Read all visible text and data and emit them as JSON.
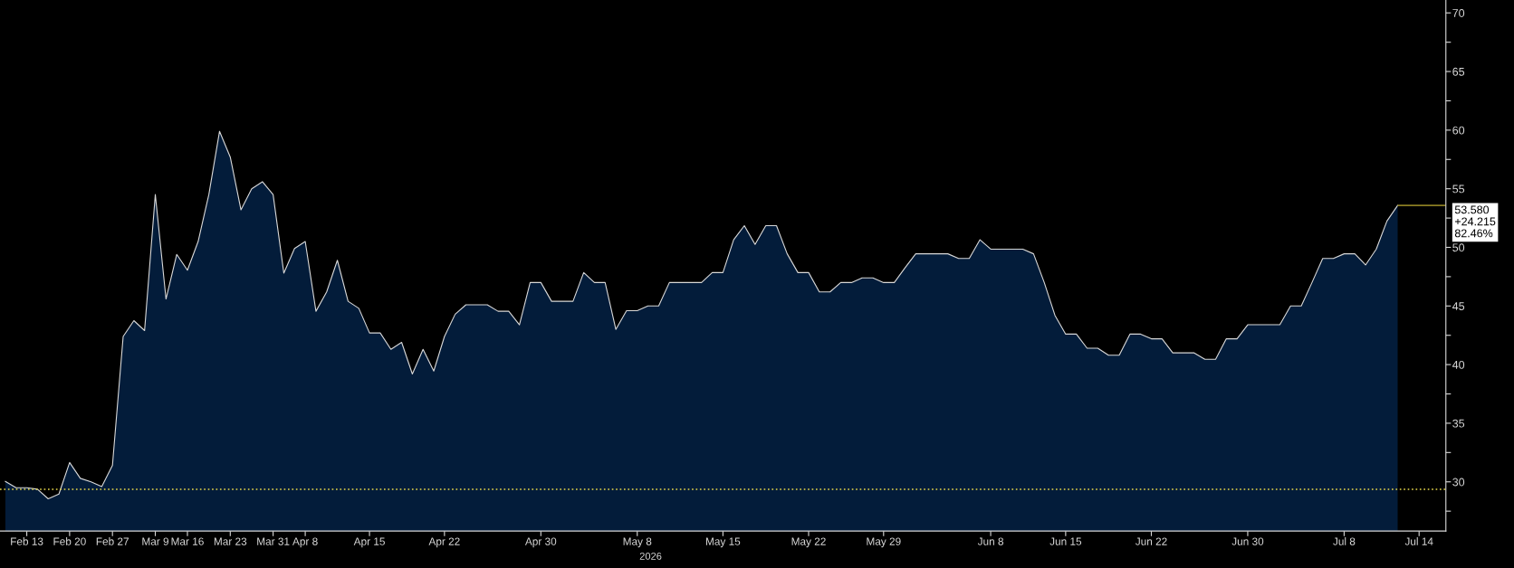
{
  "chart_data": {
    "type": "area",
    "xlabel": "2026",
    "categories": [
      null,
      null,
      "Feb 13",
      null,
      null,
      null,
      "Feb 20",
      null,
      null,
      null,
      "Feb 27",
      null,
      null,
      null,
      "Mar 9",
      null,
      null,
      "Mar 16",
      null,
      null,
      null,
      "Mar 23",
      null,
      null,
      null,
      "Mar 31",
      null,
      null,
      "Apr 8",
      null,
      null,
      null,
      null,
      null,
      "Apr 15",
      null,
      null,
      null,
      null,
      null,
      null,
      "Apr 22",
      null,
      null,
      null,
      null,
      null,
      null,
      null,
      null,
      "Apr 30",
      null,
      null,
      null,
      null,
      null,
      null,
      null,
      null,
      "May 8",
      null,
      null,
      null,
      null,
      null,
      null,
      null,
      "May 15",
      null,
      null,
      null,
      null,
      null,
      null,
      null,
      "May 22",
      null,
      null,
      null,
      null,
      null,
      null,
      "May 29",
      null,
      null,
      null,
      null,
      null,
      null,
      null,
      null,
      null,
      "Jun 8",
      null,
      null,
      null,
      null,
      null,
      null,
      "Jun 15",
      null,
      null,
      null,
      null,
      null,
      null,
      null,
      "Jun 22",
      null,
      null,
      null,
      null,
      null,
      null,
      null,
      null,
      "Jun 30",
      null,
      null,
      null,
      null,
      null,
      null,
      null,
      null,
      "Jul 8",
      null,
      null,
      null,
      null,
      null,
      null,
      "Jul 14",
      null,
      null
    ],
    "series": [
      {
        "color": "#031c3a",
        "values": [
          30.04,
          29.5,
          29.5,
          29.37,
          28.55,
          28.96,
          31.65,
          30.3,
          30.0,
          29.6,
          31.4,
          42.4,
          43.75,
          42.9,
          54.5,
          45.6,
          49.4,
          48.05,
          50.5,
          54.5,
          59.9,
          57.7,
          53.2,
          55.0,
          55.6,
          54.5,
          47.8,
          49.9,
          50.5,
          44.55,
          46.2,
          48.9,
          45.4,
          44.8,
          42.7,
          42.7,
          41.3,
          41.9,
          39.2,
          41.3,
          39.45,
          42.4,
          44.3,
          45.1,
          45.1,
          45.1,
          44.55,
          44.55,
          43.4,
          47.0,
          47.0,
          45.4,
          45.4,
          45.4,
          47.85,
          47.0,
          47.0,
          43.0,
          44.6,
          44.6,
          45.0,
          45.0,
          47.0,
          47.0,
          47.0,
          47.0,
          47.85,
          47.85,
          50.65,
          51.85,
          50.25,
          51.85,
          51.85,
          49.45,
          47.85,
          47.85,
          46.2,
          46.2,
          47.0,
          47.0,
          47.4,
          47.4,
          47.0,
          47.0,
          48.25,
          49.45,
          49.45,
          49.45,
          49.45,
          49.05,
          49.05,
          50.65,
          49.85,
          49.85,
          49.85,
          49.85,
          49.45,
          47.0,
          44.2,
          42.6,
          42.6,
          41.4,
          41.4,
          40.8,
          40.8,
          42.6,
          42.6,
          42.2,
          42.2,
          41.0,
          41.0,
          41.0,
          40.45,
          40.45,
          42.2,
          42.2,
          43.4,
          43.4,
          43.4,
          43.4,
          45.0,
          45.0,
          47.0,
          49.05,
          49.05,
          49.45,
          49.45,
          48.5,
          49.85,
          52.25,
          53.58,
          null,
          null,
          null,
          null
        ]
      }
    ],
    "ylim": [
      25.8,
      71.1
    ],
    "yticks": [
      {
        "value": 27.5,
        "label": null
      },
      30,
      {
        "value": 32.5,
        "label": null
      },
      35,
      {
        "value": 37.5,
        "label": null
      },
      40,
      {
        "value": 42.5,
        "label": null
      },
      45,
      {
        "value": 47.5,
        "label": null
      },
      50,
      {
        "value": 52.5,
        "label": null
      },
      55,
      {
        "value": 57.5,
        "label": null
      },
      60,
      {
        "value": 62.5,
        "label": null
      },
      65,
      {
        "value": 67.5,
        "label": null
      },
      70
    ],
    "ref_lines": [
      {
        "axis": "y",
        "value": 53.58,
        "label": "53.580",
        "color": "#8a7d22",
        "line_style": "solid"
      },
      {
        "axis": "y",
        "value": 29.365,
        "color": "#e8d84a",
        "line_style": "dotted"
      }
    ],
    "annotations": [
      "+24.215",
      "82.46%"
    ],
    "grid": false,
    "marker": "none",
    "line_style": "solid"
  }
}
